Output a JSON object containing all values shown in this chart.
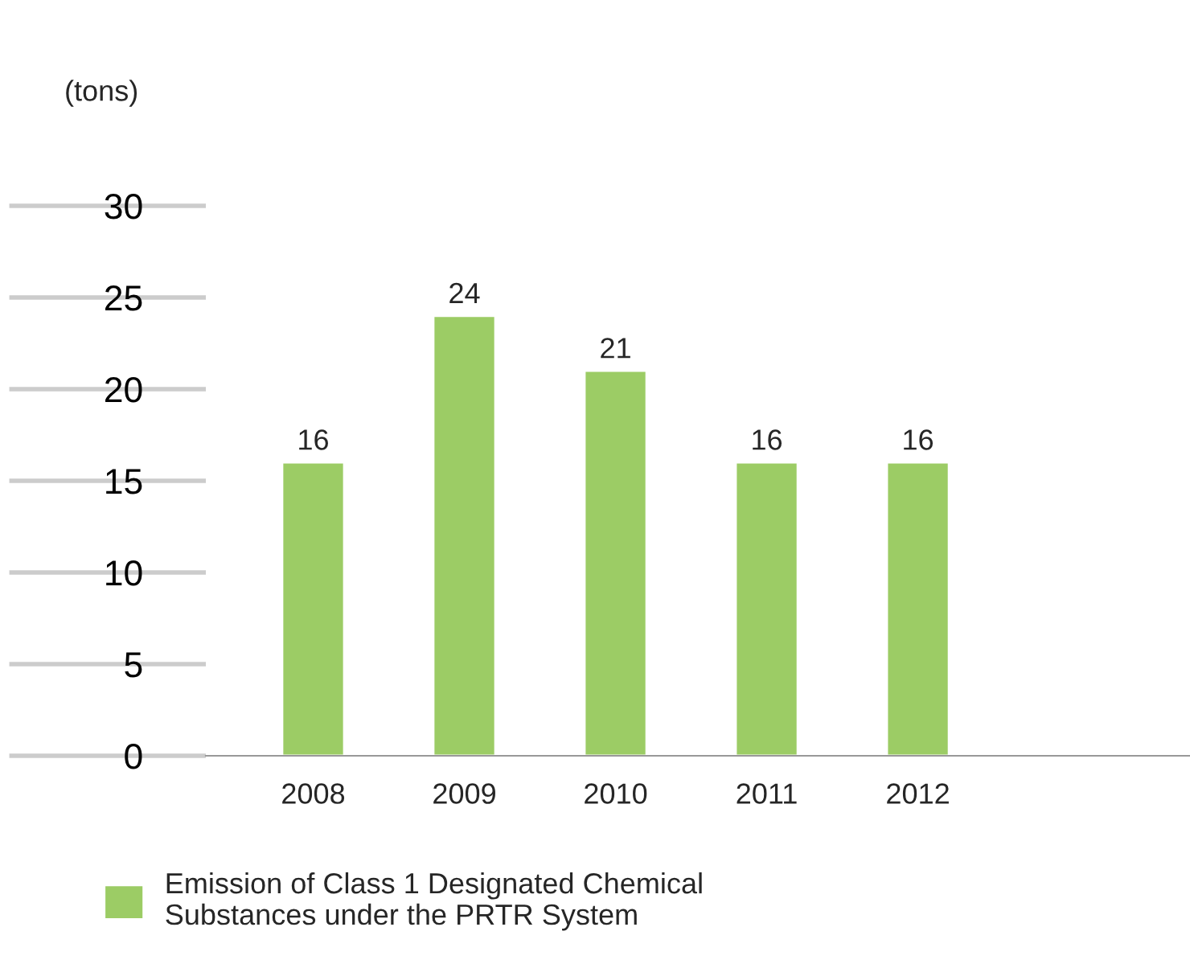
{
  "chart_data": {
    "type": "bar",
    "ylabel": "(tons)",
    "categories": [
      "2008",
      "2009",
      "2010",
      "2011",
      "2012"
    ],
    "series": [
      {
        "name": "Emission of Class 1 Designated Chemical\nSubstances under the PRTR System",
        "color": "#9ccc65",
        "values": [
          16,
          24,
          21,
          16,
          16
        ]
      }
    ],
    "ylim": [
      0,
      30
    ],
    "yticks": [
      0,
      5,
      10,
      15,
      20,
      25,
      30
    ],
    "data_labels": true,
    "legend": "bottom left"
  }
}
